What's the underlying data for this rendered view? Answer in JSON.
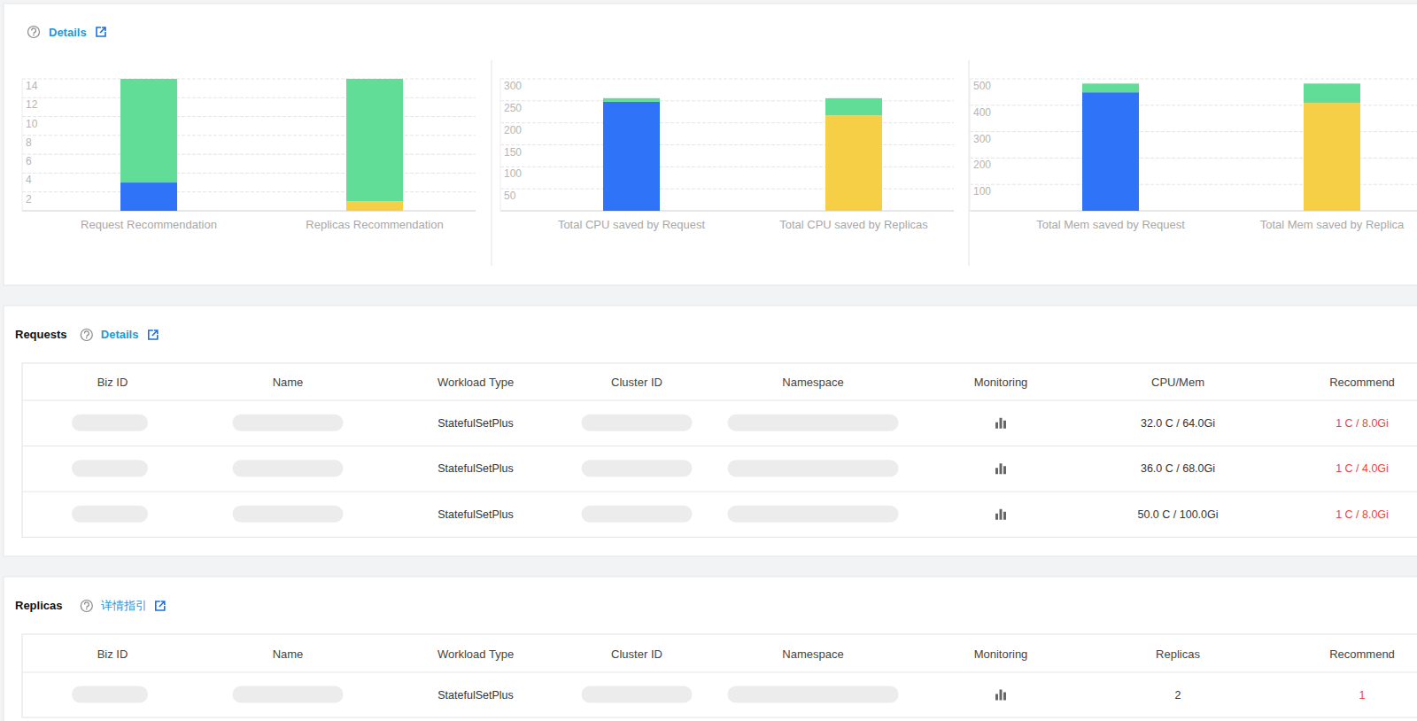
{
  "summary": {
    "link": "Details"
  },
  "chart_data": [
    {
      "type": "bar",
      "stacked": true,
      "grid": true,
      "categories": [
        "Request Recommendation",
        "Replicas Recommendation"
      ],
      "ylim": [
        0,
        14
      ],
      "yticks": [
        2,
        4,
        6,
        8,
        10,
        12,
        14
      ],
      "series": [
        {
          "color": "#2f74f8",
          "values": [
            3,
            null
          ]
        },
        {
          "color": "#f7cf46",
          "values": [
            null,
            1
          ]
        },
        {
          "color": "#62dd97",
          "values": [
            11,
            13
          ]
        }
      ]
    },
    {
      "type": "bar",
      "stacked": true,
      "grid": true,
      "categories": [
        "Total CPU saved by Request",
        "Total CPU saved by Replicas"
      ],
      "ylim": [
        0,
        300
      ],
      "yticks": [
        50,
        100,
        150,
        200,
        250,
        300
      ],
      "series": [
        {
          "color": "#2f74f8",
          "values": [
            248,
            null
          ]
        },
        {
          "color": "#f7cf46",
          "values": [
            null,
            217
          ]
        },
        {
          "color": "#62dd97",
          "values": [
            8,
            39
          ]
        }
      ]
    },
    {
      "type": "bar",
      "stacked": true,
      "grid": true,
      "categories": [
        "Total Mem saved by Request",
        "Total Mem saved by Replica"
      ],
      "ylim": [
        0,
        500
      ],
      "yticks": [
        100,
        200,
        300,
        400,
        500
      ],
      "series": [
        {
          "color": "#2f74f8",
          "values": [
            449,
            null
          ]
        },
        {
          "color": "#f7cf46",
          "values": [
            null,
            409
          ]
        },
        {
          "color": "#62dd97",
          "values": [
            33,
            73
          ]
        }
      ]
    }
  ],
  "requests": {
    "title": "Requests",
    "link": "Details",
    "table": {
      "columns": [
        "Biz ID",
        "Name",
        "Workload Type",
        "Cluster ID",
        "Namespace",
        "Monitoring",
        "CPU/Mem",
        "Recommend"
      ],
      "rows": [
        [
          null,
          null,
          "StatefulSetPlus",
          null,
          null,
          null,
          "32.0 C / 64.0Gi",
          "1 C / 8.0Gi"
        ],
        [
          null,
          null,
          "StatefulSetPlus",
          null,
          null,
          null,
          "36.0 C / 68.0Gi",
          "1 C / 4.0Gi"
        ],
        [
          null,
          null,
          "StatefulSetPlus",
          null,
          null,
          null,
          "50.0 C / 100.0Gi",
          "1 C / 8.0Gi"
        ]
      ]
    }
  },
  "replicas": {
    "title": "Replicas",
    "link": "详情指引",
    "table": {
      "columns": [
        "Biz ID",
        "Name",
        "Workload Type",
        "Cluster ID",
        "Namespace",
        "Monitoring",
        "Replicas",
        "Recommend"
      ],
      "rows": [
        [
          null,
          null,
          "StatefulSetPlus",
          null,
          null,
          null,
          2,
          1
        ]
      ]
    }
  }
}
